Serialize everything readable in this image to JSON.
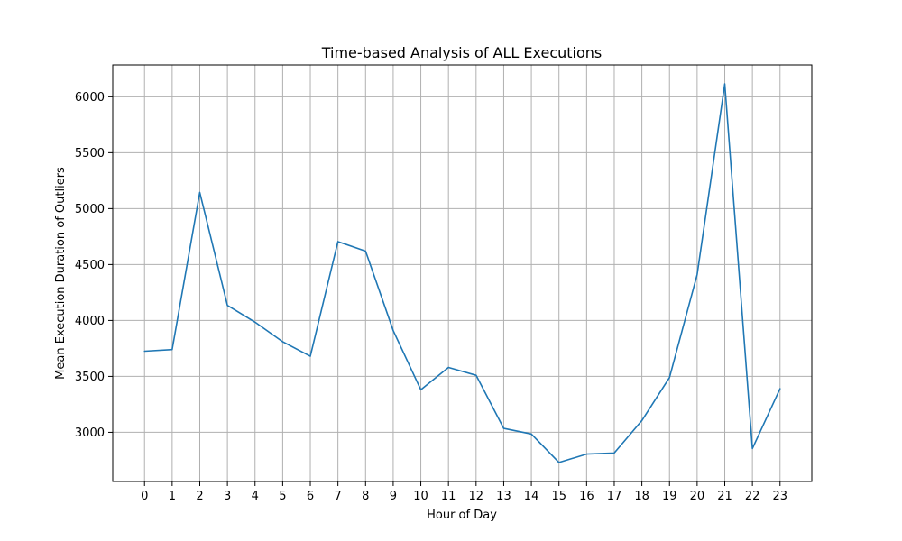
{
  "chart_data": {
    "type": "line",
    "title": "Time-based Analysis of ALL Executions",
    "xlabel": "Hour of Day",
    "ylabel": "Mean Execution Duration of Outliers",
    "x": [
      0,
      1,
      2,
      3,
      4,
      5,
      6,
      7,
      8,
      9,
      10,
      11,
      12,
      13,
      14,
      15,
      16,
      17,
      18,
      19,
      20,
      21,
      22,
      23
    ],
    "series": [
      {
        "values": [
          3725,
          3740,
          5145,
          4135,
          3985,
          3810,
          3680,
          4705,
          4620,
          3910,
          3380,
          3580,
          3510,
          3035,
          2985,
          2730,
          2805,
          2815,
          3105,
          3490,
          4410,
          6115,
          2855,
          3390
        ],
        "color": "#1f77b4"
      }
    ],
    "xticks": [
      "0",
      "1",
      "2",
      "3",
      "4",
      "5",
      "6",
      "7",
      "8",
      "9",
      "10",
      "11",
      "12",
      "13",
      "14",
      "15",
      "16",
      "17",
      "18",
      "19",
      "20",
      "21",
      "22",
      "23"
    ],
    "yticks": [
      "3000",
      "3500",
      "4000",
      "4500",
      "5000",
      "5500",
      "6000"
    ],
    "xlim": [
      -1.15,
      24.15
    ],
    "ylim": [
      2560,
      6285
    ],
    "grid": true,
    "line_color": "#1f77b4",
    "grid_color": "#b0b0b0"
  }
}
